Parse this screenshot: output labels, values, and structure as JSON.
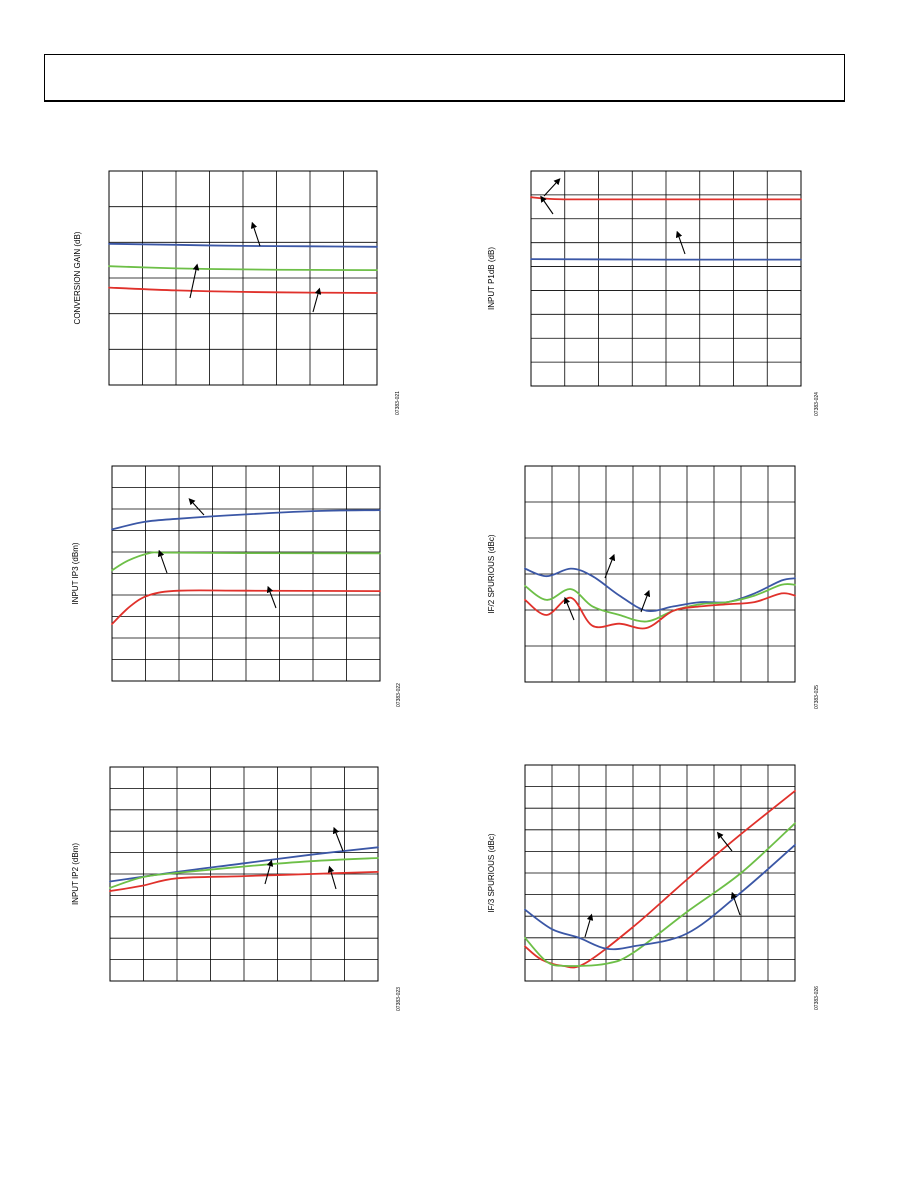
{
  "page": {
    "background": "#ffffff"
  },
  "colors": {
    "blue": "#3b57a6",
    "green": "#6dbf47",
    "red": "#e0312b",
    "grid": "#000000"
  },
  "chart_data": [
    {
      "type": "line",
      "ylabel": "CONVERSION GAIN (dB)",
      "figure_id": "07383-021",
      "xlim": [
        0,
        1
      ],
      "ylim": [
        0,
        1
      ],
      "grid": true,
      "series": [
        {
          "color": "blue",
          "x": [
            0,
            0.25,
            0.5,
            0.75,
            1
          ],
          "y": [
            0.66,
            0.655,
            0.65,
            0.648,
            0.646
          ]
        },
        {
          "color": "green",
          "x": [
            0,
            0.25,
            0.5,
            0.75,
            1
          ],
          "y": [
            0.555,
            0.545,
            0.54,
            0.538,
            0.537
          ]
        },
        {
          "color": "red",
          "x": [
            0,
            0.25,
            0.5,
            0.75,
            1
          ],
          "y": [
            0.455,
            0.442,
            0.435,
            0.432,
            0.43
          ]
        }
      ]
    },
    {
      "type": "line",
      "ylabel": "INPUT P1dB (dB)",
      "figure_id": "07383-024",
      "xlim": [
        0,
        1
      ],
      "ylim": [
        0,
        1
      ],
      "grid": true,
      "series": [
        {
          "color": "red",
          "x": [
            0,
            0.05,
            0.15,
            0.5,
            1
          ],
          "y": [
            0.878,
            0.872,
            0.868,
            0.868,
            0.868
          ]
        },
        {
          "color": "blue",
          "x": [
            0,
            0.5,
            1
          ],
          "y": [
            0.59,
            0.588,
            0.588
          ]
        }
      ]
    },
    {
      "type": "line",
      "ylabel": "INPUT IP3 (dBm)",
      "figure_id": "07383-022",
      "xlim": [
        0,
        1
      ],
      "ylim": [
        0,
        1
      ],
      "grid": true,
      "series": [
        {
          "color": "blue",
          "x": [
            0,
            0.12,
            0.25,
            0.5,
            0.75,
            1
          ],
          "y": [
            0.705,
            0.74,
            0.755,
            0.775,
            0.79,
            0.795
          ]
        },
        {
          "color": "green",
          "x": [
            0,
            0.06,
            0.14,
            0.2,
            0.5,
            1
          ],
          "y": [
            0.515,
            0.56,
            0.595,
            0.597,
            0.595,
            0.594
          ]
        },
        {
          "color": "red",
          "x": [
            0,
            0.07,
            0.14,
            0.25,
            0.5,
            1
          ],
          "y": [
            0.265,
            0.35,
            0.4,
            0.42,
            0.42,
            0.418
          ]
        }
      ]
    },
    {
      "type": "line",
      "ylabel": "IF/2 SPURIOUS (dBc)",
      "figure_id": "07383-025",
      "xlim": [
        0,
        1
      ],
      "ylim": [
        0,
        1
      ],
      "grid": true,
      "series": [
        {
          "color": "blue",
          "x": [
            0,
            0.08,
            0.17,
            0.25,
            0.35,
            0.45,
            0.55,
            0.65,
            0.75,
            0.85,
            0.95,
            1
          ],
          "y": [
            0.525,
            0.49,
            0.525,
            0.49,
            0.4,
            0.33,
            0.35,
            0.37,
            0.37,
            0.41,
            0.47,
            0.48
          ]
        },
        {
          "color": "green",
          "x": [
            0,
            0.08,
            0.17,
            0.25,
            0.35,
            0.45,
            0.55,
            0.65,
            0.75,
            0.85,
            0.95,
            1
          ],
          "y": [
            0.445,
            0.38,
            0.43,
            0.35,
            0.31,
            0.28,
            0.33,
            0.36,
            0.37,
            0.4,
            0.45,
            0.45
          ]
        },
        {
          "color": "red",
          "x": [
            0,
            0.08,
            0.17,
            0.25,
            0.35,
            0.45,
            0.55,
            0.65,
            0.75,
            0.85,
            0.95,
            1
          ],
          "y": [
            0.38,
            0.31,
            0.39,
            0.26,
            0.27,
            0.25,
            0.33,
            0.35,
            0.36,
            0.37,
            0.41,
            0.4
          ]
        }
      ]
    },
    {
      "type": "line",
      "ylabel": "INPUT IP2 (dBm)",
      "figure_id": "07383-023",
      "xlim": [
        0,
        1
      ],
      "ylim": [
        0,
        1
      ],
      "grid": true,
      "series": [
        {
          "color": "blue",
          "x": [
            0,
            0.25,
            0.5,
            0.75,
            1
          ],
          "y": [
            0.465,
            0.51,
            0.55,
            0.59,
            0.625
          ]
        },
        {
          "color": "green",
          "x": [
            0,
            0.12,
            0.25,
            0.5,
            0.75,
            1
          ],
          "y": [
            0.435,
            0.485,
            0.505,
            0.535,
            0.56,
            0.575
          ]
        },
        {
          "color": "red",
          "x": [
            0,
            0.12,
            0.25,
            0.5,
            0.75,
            1
          ],
          "y": [
            0.42,
            0.445,
            0.48,
            0.49,
            0.5,
            0.51
          ]
        }
      ]
    },
    {
      "type": "line",
      "ylabel": "IF/3 SPURIOUS (dBc)",
      "figure_id": "07383-026",
      "xlim": [
        0,
        1
      ],
      "ylim": [
        0,
        1
      ],
      "grid": true,
      "series": [
        {
          "color": "red",
          "x": [
            0,
            0.06,
            0.14,
            0.22,
            0.4,
            0.6,
            0.8,
            1
          ],
          "y": [
            0.16,
            0.1,
            0.07,
            0.08,
            0.25,
            0.47,
            0.68,
            0.88
          ]
        },
        {
          "color": "green",
          "x": [
            0,
            0.08,
            0.15,
            0.3,
            0.4,
            0.6,
            0.8,
            1
          ],
          "y": [
            0.2,
            0.09,
            0.07,
            0.08,
            0.13,
            0.32,
            0.5,
            0.73
          ]
        },
        {
          "color": "blue",
          "x": [
            0,
            0.1,
            0.2,
            0.3,
            0.4,
            0.6,
            0.8,
            1
          ],
          "y": [
            0.33,
            0.24,
            0.2,
            0.15,
            0.16,
            0.22,
            0.41,
            0.63
          ]
        }
      ]
    }
  ]
}
